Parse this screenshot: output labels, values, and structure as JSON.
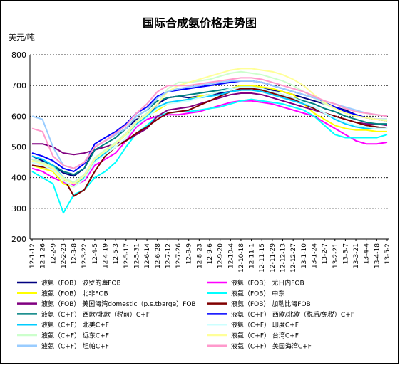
{
  "chart_data": {
    "type": "line",
    "title": "国际合成氨价格走势图",
    "ylabel": "美元/吨",
    "xlabel": "",
    "ylim": [
      200,
      800
    ],
    "yticks": [
      200,
      300,
      400,
      500,
      600,
      700,
      800
    ],
    "grid": "horizontal-dashed",
    "legend_position": "bottom",
    "x": [
      "12-1-12",
      "12-1-26",
      "12-2-9",
      "12-2-23",
      "12-3-8",
      "12-3-22",
      "12-4-5",
      "12-4-19",
      "12-5-3",
      "12-5-17",
      "12-5-31",
      "12-6-14",
      "12-6-28",
      "12-7-12",
      "12-7-26",
      "12-8-9",
      "12-8-23",
      "12-9-6",
      "12-9-20",
      "12-10-4",
      "12-10-18",
      "12-11-1",
      "12-11-15",
      "12-11-29",
      "12-12-13",
      "12-12-27",
      "13-1-10",
      "13-1-24",
      "13-2-7",
      "13-2-21",
      "13-3-7",
      "13-3-21",
      "13-4-4",
      "13-4-18",
      "13-5-2"
    ],
    "series": [
      {
        "name": "液氨（FOB） 波罗的海FOB",
        "color": "#000080",
        "values": [
          470,
          455,
          440,
          415,
          405,
          430,
          500,
          520,
          540,
          560,
          590,
          600,
          640,
          660,
          665,
          660,
          665,
          670,
          675,
          680,
          685,
          690,
          690,
          685,
          680,
          670,
          660,
          650,
          640,
          630,
          620,
          605,
          595,
          590,
          585
        ]
      },
      {
        "name": "液氨（FOB） 尤日内FOB",
        "color": "#ff00ff",
        "values": [
          430,
          420,
          400,
          385,
          375,
          390,
          440,
          460,
          480,
          520,
          565,
          590,
          600,
          605,
          605,
          610,
          615,
          625,
          635,
          645,
          650,
          650,
          645,
          640,
          630,
          620,
          610,
          600,
          580,
          560,
          540,
          520,
          510,
          510,
          515
        ]
      },
      {
        "name": "液氨（FOB） 北非FOB",
        "color": "#ffff00",
        "values": [
          440,
          430,
          420,
          380,
          370,
          400,
          460,
          490,
          510,
          540,
          570,
          600,
          620,
          640,
          650,
          655,
          665,
          670,
          680,
          690,
          700,
          700,
          695,
          690,
          680,
          670,
          640,
          610,
          590,
          570,
          560,
          555,
          555,
          550,
          550
        ]
      },
      {
        "name": "液氨（FOB） 中东",
        "color": "#00ffff",
        "values": [
          420,
          400,
          380,
          285,
          345,
          360,
          400,
          420,
          450,
          500,
          545,
          570,
          600,
          610,
          615,
          615,
          620,
          625,
          630,
          640,
          650,
          655,
          650,
          645,
          640,
          630,
          620,
          600,
          570,
          540,
          530,
          530,
          530,
          530,
          540
        ]
      },
      {
        "name": "液氨（FOB） 美国海湾domestic（p.s.tbarge）FOB",
        "color": "#800080",
        "values": [
          510,
          510,
          500,
          480,
          475,
          480,
          490,
          500,
          510,
          520,
          540,
          560,
          600,
          620,
          625,
          630,
          640,
          650,
          660,
          670,
          675,
          675,
          670,
          660,
          650,
          640,
          630,
          620,
          610,
          600,
          590,
          580,
          575,
          575,
          570
        ]
      },
      {
        "name": "液氨（FOB） 加勒比海FOB",
        "color": "#800000",
        "values": [
          440,
          435,
          430,
          400,
          340,
          360,
          420,
          470,
          500,
          520,
          545,
          565,
          590,
          610,
          615,
          620,
          635,
          650,
          665,
          680,
          690,
          690,
          685,
          675,
          665,
          655,
          640,
          625,
          610,
          600,
          590,
          580,
          570,
          565,
          560
        ]
      },
      {
        "name": "液氨（C+F） 西欧/北欧（税前）C+F",
        "color": "#008080",
        "values": [
          460,
          450,
          440,
          420,
          410,
          430,
          490,
          510,
          530,
          560,
          600,
          620,
          650,
          660,
          665,
          670,
          675,
          680,
          685,
          690,
          695,
          695,
          690,
          680,
          670,
          660,
          650,
          640,
          625,
          615,
          600,
          590,
          580,
          575,
          575
        ]
      },
      {
        "name": "液氨（C+F） 西欧/北欧（税后/免税）C+F",
        "color": "#0000ff",
        "values": [
          480,
          470,
          455,
          430,
          420,
          445,
          510,
          530,
          550,
          575,
          610,
          630,
          665,
          680,
          685,
          690,
          695,
          700,
          705,
          710,
          715,
          715,
          710,
          700,
          690,
          680,
          670,
          660,
          645,
          630,
          615,
          605,
          595,
          590,
          590
        ]
      },
      {
        "name": "液氨（C+F） 北美C+F",
        "color": "#00ccff",
        "values": [
          470,
          460,
          440,
          400,
          380,
          400,
          455,
          480,
          510,
          540,
          575,
          600,
          630,
          645,
          650,
          655,
          660,
          665,
          670,
          680,
          685,
          685,
          680,
          670,
          660,
          650,
          640,
          630,
          610,
          590,
          575,
          565,
          560,
          560,
          560
        ]
      },
      {
        "name": "液氨（C+F） 印度C+F",
        "color": "#ccffff",
        "values": [
          450,
          440,
          425,
          390,
          370,
          395,
          450,
          475,
          500,
          530,
          570,
          595,
          625,
          640,
          645,
          650,
          660,
          670,
          680,
          690,
          695,
          695,
          690,
          680,
          670,
          660,
          645,
          630,
          610,
          595,
          580,
          570,
          565,
          560,
          560
        ]
      },
      {
        "name": "液氨（C+F） 远东C+F",
        "color": "#ccffcc",
        "values": [
          460,
          450,
          435,
          400,
          385,
          410,
          465,
          490,
          515,
          545,
          585,
          610,
          640,
          690,
          710,
          710,
          715,
          720,
          730,
          740,
          745,
          740,
          735,
          725,
          715,
          700,
          680,
          660,
          640,
          625,
          610,
          600,
          595,
          590,
          590
        ]
      },
      {
        "name": "液氨（C+F） 台湾C+F",
        "color": "#ffff99",
        "values": [
          455,
          445,
          430,
          395,
          380,
          405,
          460,
          485,
          510,
          540,
          580,
          605,
          640,
          680,
          700,
          710,
          720,
          730,
          740,
          750,
          755,
          755,
          750,
          745,
          735,
          720,
          700,
          670,
          645,
          625,
          610,
          600,
          595,
          590,
          585
        ]
      },
      {
        "name": "液氨（C+F） 坦帕C+F",
        "color": "#99ccff",
        "values": [
          600,
          590,
          500,
          440,
          430,
          450,
          500,
          520,
          540,
          560,
          600,
          620,
          660,
          680,
          690,
          695,
          700,
          705,
          710,
          715,
          715,
          715,
          710,
          700,
          690,
          680,
          670,
          660,
          650,
          640,
          630,
          620,
          610,
          605,
          600
        ]
      },
      {
        "name": "液氨（C+F） 美国海湾C+F",
        "color": "#ff99cc",
        "values": [
          560,
          550,
          470,
          440,
          430,
          450,
          500,
          520,
          545,
          570,
          610,
          640,
          680,
          700,
          700,
          700,
          705,
          710,
          715,
          720,
          725,
          725,
          720,
          710,
          700,
          690,
          680,
          665,
          650,
          640,
          625,
          615,
          610,
          605,
          600
        ]
      }
    ]
  }
}
